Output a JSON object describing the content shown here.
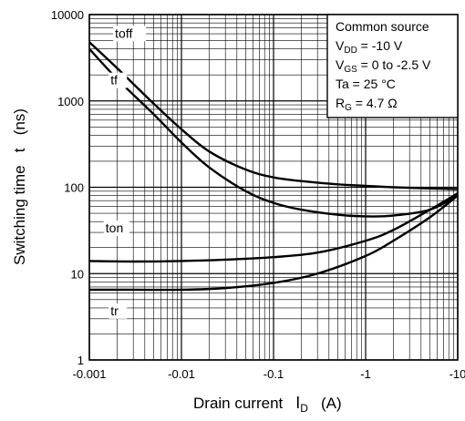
{
  "chart_data": {
    "type": "line",
    "xlabel": "Drain current",
    "xlabel_symbol": "I",
    "xlabel_subscript": "D",
    "xlabel_unit": "(A)",
    "ylabel": "Switching time   t   (ns)",
    "xscale": "log",
    "yscale": "log",
    "x_ticks": [
      {
        "label": "-0.001",
        "value": 0.001
      },
      {
        "label": "-0.01",
        "value": 0.01
      },
      {
        "label": "-0.1",
        "value": 0.1
      },
      {
        "label": "-1",
        "value": 1
      },
      {
        "label": "-10",
        "value": 10
      }
    ],
    "y_ticks": [
      {
        "label": "1",
        "value": 1
      },
      {
        "label": "10",
        "value": 10
      },
      {
        "label": "100",
        "value": 100
      },
      {
        "label": "1000",
        "value": 1000
      },
      {
        "label": "10000",
        "value": 10000
      }
    ],
    "xlim": [
      0.001,
      10
    ],
    "ylim": [
      1,
      10000
    ],
    "grid": true,
    "legend_box": {
      "placement": "top-right",
      "lines": [
        {
          "text": "Common source"
        },
        {
          "text": "V",
          "sub": "DD",
          "rest": " = -10 V"
        },
        {
          "text": "V",
          "sub": "GS",
          "rest": " = 0 to -2.5 V"
        },
        {
          "text": "Ta = 25 °C"
        },
        {
          "text": "R",
          "sub": "G",
          "rest": " = 4.7 Ω"
        }
      ]
    },
    "series": [
      {
        "name": "toff",
        "x": [
          0.001,
          0.002,
          0.005,
          0.01,
          0.02,
          0.05,
          0.1,
          0.2,
          0.5,
          1,
          2,
          5,
          10
        ],
        "y": [
          4800,
          2400,
          930,
          470,
          260,
          160,
          130,
          118,
          108,
          104,
          100,
          97,
          95
        ]
      },
      {
        "name": "tf",
        "x": [
          0.001,
          0.002,
          0.005,
          0.01,
          0.02,
          0.05,
          0.1,
          0.2,
          0.5,
          1,
          2,
          5,
          10
        ],
        "y": [
          4000,
          1800,
          700,
          330,
          170,
          90,
          66,
          55,
          48,
          46,
          47,
          55,
          80
        ]
      },
      {
        "name": "ton",
        "x": [
          0.001,
          0.003,
          0.01,
          0.03,
          0.1,
          0.3,
          1,
          2,
          5,
          10
        ],
        "y": [
          14,
          13.8,
          14,
          14.5,
          15.5,
          17.5,
          24,
          32,
          55,
          85
        ]
      },
      {
        "name": "tr",
        "x": [
          0.001,
          0.003,
          0.01,
          0.03,
          0.1,
          0.3,
          1,
          2,
          5,
          10
        ],
        "y": [
          6.5,
          6.5,
          6.5,
          6.8,
          7.8,
          10,
          16,
          24,
          45,
          80
        ]
      }
    ]
  }
}
